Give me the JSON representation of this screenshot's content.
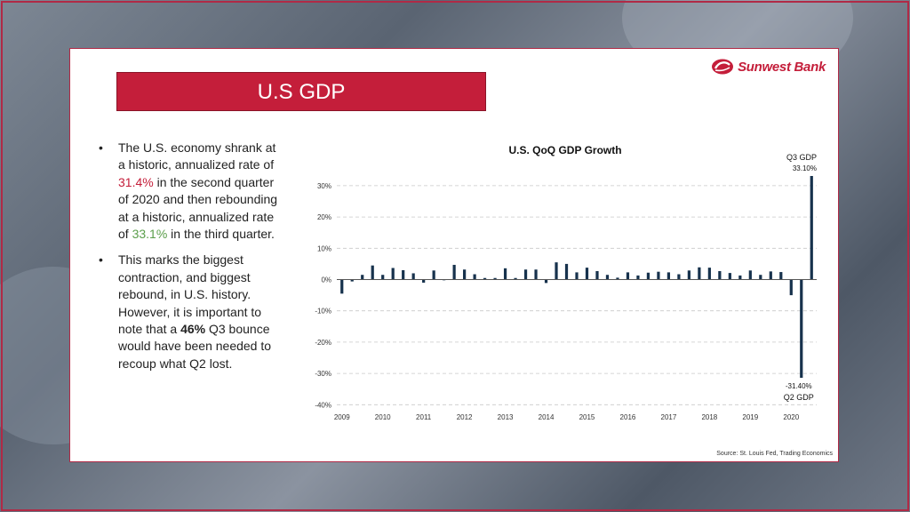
{
  "slide": {
    "title": "U.S GDP",
    "brand": "Sunwest Bank",
    "source": "Source: St. Louis Fed, Trading Economics"
  },
  "bullets": [
    {
      "p1": "The U.S. economy shrank at a historic, annualized rate of ",
      "h1": "31.4%",
      "p2": " in the second quarter of 2020 and then rebounding at a historic, annualized rate of ",
      "h2": "33.1%",
      "p3": " in the third quarter."
    },
    {
      "p1": "This marks the biggest contraction, and biggest rebound, in U.S. history. However, it is important to note that a ",
      "h1": "46%",
      "p2": " Q3 bounce would have been needed to recoup what Q2 lost."
    }
  ],
  "colors": {
    "accent": "#c41e3a",
    "bar": "#17324d",
    "negative_text": "#c41e3a",
    "positive_text": "#5a9e4a"
  },
  "chart_data": {
    "type": "bar",
    "title": "U.S. QoQ GDP Growth",
    "xlabel": "",
    "ylabel": "",
    "ylim": [
      -40,
      35
    ],
    "yticks": [
      -40,
      -30,
      -20,
      -10,
      0,
      10,
      20,
      30
    ],
    "ytick_labels": [
      "-40%",
      "-30%",
      "-20%",
      "-10%",
      "0%",
      "10%",
      "20%",
      "30%"
    ],
    "xtick_labels": [
      "2009",
      "2010",
      "2011",
      "2012",
      "2013",
      "2014",
      "2015",
      "2016",
      "2017",
      "2018",
      "2019",
      "2020"
    ],
    "grid": true,
    "series": [
      {
        "categories": [
          "2009 Q1",
          "2009 Q2",
          "2009 Q3",
          "2009 Q4",
          "2010 Q1",
          "2010 Q2",
          "2010 Q3",
          "2010 Q4",
          "2011 Q1",
          "2011 Q2",
          "2011 Q3",
          "2011 Q4",
          "2012 Q1",
          "2012 Q2",
          "2012 Q3",
          "2012 Q4",
          "2013 Q1",
          "2013 Q2",
          "2013 Q3",
          "2013 Q4",
          "2014 Q1",
          "2014 Q2",
          "2014 Q3",
          "2014 Q4",
          "2015 Q1",
          "2015 Q2",
          "2015 Q3",
          "2015 Q4",
          "2016 Q1",
          "2016 Q2",
          "2016 Q3",
          "2016 Q4",
          "2017 Q1",
          "2017 Q2",
          "2017 Q3",
          "2017 Q4",
          "2018 Q1",
          "2018 Q2",
          "2018 Q3",
          "2018 Q4",
          "2019 Q1",
          "2019 Q2",
          "2019 Q3",
          "2019 Q4",
          "2020 Q1",
          "2020 Q2",
          "2020 Q3"
        ],
        "values": [
          -4.5,
          -0.6,
          1.5,
          4.5,
          1.5,
          3.7,
          3.0,
          2.0,
          -1.0,
          2.9,
          -0.1,
          4.7,
          3.2,
          1.7,
          0.5,
          0.5,
          3.6,
          0.5,
          3.2,
          3.2,
          -1.1,
          5.5,
          5.0,
          2.3,
          3.8,
          2.7,
          1.5,
          0.6,
          2.3,
          1.3,
          2.2,
          2.5,
          2.3,
          1.7,
          2.9,
          3.9,
          3.8,
          2.7,
          2.1,
          1.3,
          2.9,
          1.5,
          2.6,
          2.4,
          -5.0,
          -31.4,
          33.1
        ]
      }
    ],
    "annotations": [
      {
        "lines": [
          "Q3 GDP",
          "33.10%"
        ],
        "category": "2020 Q3"
      },
      {
        "lines": [
          "-31.40%",
          "Q2 GDP"
        ],
        "category": "2020 Q2"
      }
    ]
  }
}
